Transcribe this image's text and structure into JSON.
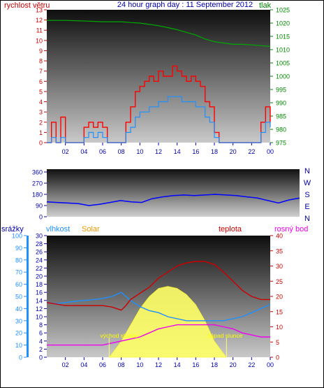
{
  "chart_data": [
    {
      "type": "line",
      "title": "24 hour graph day : 11 September 2012",
      "left_axis_label": "rychlost větru",
      "right_axis_label": "tlak",
      "left_ylim": [
        0,
        13
      ],
      "left_ticks": [
        "0",
        "1",
        "2",
        "3",
        "4",
        "5",
        "6",
        "7",
        "8",
        "9",
        "10",
        "11",
        "12",
        "13"
      ],
      "right_ylim": [
        975,
        1025
      ],
      "right_ticks": [
        "975",
        "980",
        "985",
        "990",
        "995",
        "1000",
        "1005",
        "1010",
        "1015",
        "1020",
        "1025"
      ],
      "xlim": [
        0,
        24
      ],
      "x_ticks": [
        "02",
        "04",
        "06",
        "08",
        "10",
        "12",
        "14",
        "16",
        "18",
        "20",
        "22",
        "00"
      ],
      "colors": {
        "gust": "#ff0000",
        "wind": "#1e90ff",
        "pressure": "#00aa00"
      },
      "series": [
        {
          "key": "gust",
          "x": [
            0,
            0.5,
            1,
            1.5,
            2,
            3,
            3.5,
            4,
            4.5,
            5,
            5.5,
            6,
            6.5,
            7,
            7.5,
            8,
            8.5,
            9,
            9.5,
            10,
            10.5,
            11,
            11.5,
            12,
            12.5,
            13,
            13.5,
            14,
            14.5,
            15,
            15.5,
            16,
            16.5,
            17,
            17.5,
            18,
            18.5,
            19,
            20,
            21,
            22,
            22.5,
            23,
            23.5,
            24
          ],
          "y": [
            0,
            2,
            0,
            2.5,
            0,
            0,
            0,
            1.5,
            2,
            1.5,
            2,
            1.5,
            0,
            0,
            0,
            0,
            2,
            3.5,
            5,
            5.5,
            6,
            6.5,
            6,
            7,
            6.5,
            6.5,
            7.5,
            7,
            6.5,
            6,
            6.5,
            6,
            5.5,
            4,
            3.5,
            1,
            0,
            0,
            0,
            0,
            0,
            0,
            2,
            3.5,
            2
          ]
        },
        {
          "key": "wind",
          "x": [
            0,
            0.5,
            1,
            1.5,
            2,
            3,
            3.5,
            4,
            4.5,
            5,
            5.5,
            6,
            6.5,
            7,
            7.5,
            8,
            8.5,
            9,
            9.5,
            10,
            10.5,
            11,
            11.5,
            12,
            12.5,
            13,
            13.5,
            14,
            14.5,
            15,
            15.5,
            16,
            16.5,
            17,
            17.5,
            18,
            18.5,
            19,
            20,
            21,
            22,
            22.5,
            23,
            23.5,
            24
          ],
          "y": [
            0,
            0.5,
            0,
            0.5,
            0,
            0,
            0,
            0.5,
            1,
            0.5,
            1,
            0.5,
            0,
            0,
            0,
            0,
            1,
            1.5,
            2.5,
            3,
            3,
            3.5,
            3.5,
            4,
            4,
            4.5,
            4.5,
            4.5,
            4,
            4,
            4,
            3.5,
            3.5,
            2.5,
            2,
            0.5,
            0,
            0,
            0,
            0,
            0,
            0,
            1,
            2,
            1.5
          ]
        },
        {
          "key": "pressure",
          "x": [
            0,
            2,
            4,
            6,
            8,
            9,
            10,
            11,
            12,
            13,
            14,
            15,
            16,
            17,
            18,
            19,
            20,
            21,
            22,
            23,
            24
          ],
          "y": [
            1021,
            1021,
            1020.8,
            1020.5,
            1020.5,
            1020.2,
            1020,
            1019.5,
            1019,
            1018.3,
            1017.5,
            1016.5,
            1015.5,
            1014,
            1013,
            1012.5,
            1012,
            1012,
            1011.8,
            1011.5,
            1011.2
          ]
        }
      ]
    },
    {
      "type": "line",
      "left_ylim": [
        0,
        360
      ],
      "left_ticks": [
        "0",
        "90",
        "180",
        "270",
        "360"
      ],
      "right_labels": [
        "N",
        "W",
        "S",
        "E",
        "N"
      ],
      "xlim": [
        0,
        24
      ],
      "color": "#0000ff",
      "series": [
        {
          "key": "direction",
          "x": [
            0,
            1,
            2,
            3,
            4,
            5,
            6,
            7,
            8,
            9,
            10,
            11,
            12,
            13,
            14,
            15,
            16,
            17,
            18,
            19,
            20,
            21,
            22,
            23,
            24
          ],
          "y": [
            120,
            115,
            110,
            105,
            90,
            100,
            115,
            130,
            120,
            115,
            145,
            160,
            170,
            175,
            170,
            175,
            180,
            175,
            170,
            160,
            150,
            130,
            110,
            135,
            150
          ]
        }
      ]
    },
    {
      "type": "line",
      "labels": {
        "rain": "srážky",
        "humidity": "vlhkost",
        "solar": "Solar",
        "temperature": "teplota",
        "dewpoint": "rosný bod"
      },
      "annotations": {
        "sunrise": "východ slunce",
        "sunset": "západ slunce"
      },
      "sunrise_x": 6.7,
      "sunset_x": 19.3,
      "rain_ylim": [
        0,
        100
      ],
      "rain_ticks": [
        "0",
        "10",
        "20",
        "30",
        "40",
        "50",
        "60",
        "70",
        "80",
        "90",
        "100"
      ],
      "mid_ylim": [
        0,
        30
      ],
      "mid_ticks": [
        "0",
        "2",
        "4",
        "6",
        "8",
        "10",
        "12",
        "14",
        "16",
        "18",
        "20",
        "22",
        "24",
        "26",
        "28",
        "30"
      ],
      "temp_ylim": [
        0,
        40
      ],
      "temp_ticks": [
        "0",
        "5",
        "10",
        "15",
        "20",
        "25",
        "30",
        "35",
        "40"
      ],
      "xlim": [
        0,
        24
      ],
      "colors": {
        "rain": "#1e90ff",
        "humidity": "#1e90ff",
        "solar": "#ffff66",
        "temperature": "#cc0000",
        "dewpoint": "#ee00ee"
      },
      "series": [
        {
          "key": "temperature",
          "x": [
            0,
            1,
            2,
            3,
            4,
            5,
            6,
            7,
            7.5,
            8,
            8.5,
            9,
            10,
            11,
            12,
            13,
            14,
            15,
            16,
            17,
            18,
            19,
            20,
            21,
            22,
            23,
            24
          ],
          "y": [
            18,
            17.5,
            17,
            17,
            17,
            17,
            17,
            16.5,
            16,
            15.5,
            17,
            19,
            21,
            23,
            26,
            28,
            30,
            31,
            31.5,
            31.5,
            30.5,
            28,
            25,
            22,
            20,
            19,
            19
          ]
        },
        {
          "key": "humidity",
          "x": [
            0,
            1,
            2,
            3,
            4,
            5,
            6,
            7,
            7.5,
            8,
            8.5,
            9,
            10,
            11,
            12,
            13,
            14,
            15,
            16,
            17,
            18,
            19,
            20,
            21,
            22,
            23,
            24
          ],
          "y": [
            13.5,
            13.2,
            13.5,
            13.8,
            14,
            14.2,
            14.5,
            15,
            15.5,
            16,
            15,
            14,
            12.5,
            11.5,
            11,
            10,
            9.5,
            9,
            9,
            9,
            9,
            9,
            9.5,
            10,
            11,
            12,
            13
          ]
        },
        {
          "key": "dewpoint",
          "x": [
            0,
            1,
            2,
            3,
            4,
            5,
            6,
            7,
            8,
            9,
            10,
            11,
            12,
            13,
            14,
            15,
            16,
            17,
            18,
            19,
            20,
            21,
            22,
            23,
            24
          ],
          "y": [
            3,
            3,
            3,
            3,
            3,
            3,
            3,
            3.5,
            4,
            4.5,
            5,
            6,
            7,
            7.5,
            8,
            8,
            8,
            8,
            8,
            7.5,
            7,
            6,
            5.5,
            5,
            5
          ]
        },
        {
          "key": "solar",
          "x": [
            6.7,
            8,
            9,
            10,
            11,
            12,
            13,
            14,
            15,
            16,
            17,
            18,
            19.3
          ],
          "y": [
            0,
            4,
            8,
            12,
            15,
            17,
            17.5,
            17,
            15.5,
            13,
            9,
            4,
            0
          ]
        }
      ]
    }
  ]
}
